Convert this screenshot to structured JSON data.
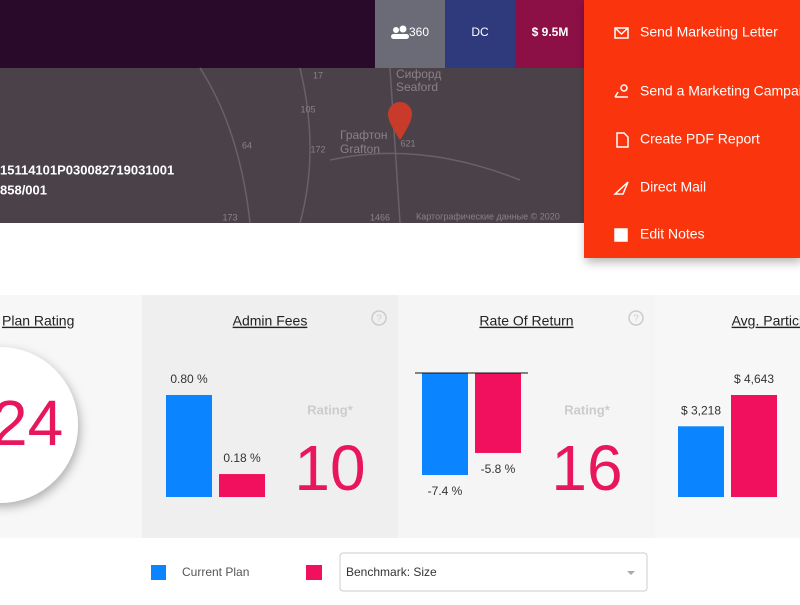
{
  "header": {
    "stats": [
      "360",
      "DC",
      "$ 9.5M"
    ]
  },
  "menu": [
    "Send Marketing Letter",
    "Send a Marketing Campai",
    "Create PDF Report",
    "Direct Mail",
    "Edit Notes"
  ],
  "map": {
    "record_ids": [
      "15114101P030082719031001",
      "858/001"
    ],
    "labels": [
      "Сифорд",
      "Seaford",
      "Графтон",
      "Grafton",
      "17",
      "105",
      "172",
      "64",
      "621",
      "173",
      "1466"
    ],
    "attribution": "Картографические данные © 2020"
  },
  "cards": [
    {
      "title": "Plan Rating",
      "rating": 24
    },
    {
      "title": "Admin Fees",
      "current": 0.8,
      "current_label": "0.80 %",
      "benchmark": 0.18,
      "benchmark_label": "0.18 %",
      "rating_label": "Rating*",
      "rating": 10
    },
    {
      "title": "Rate Of Return",
      "current": -7.4,
      "current_label": "-7.4 %",
      "benchmark": -5.8,
      "benchmark_label": "-5.8 %",
      "rating_label": "Rating*",
      "rating": 16
    },
    {
      "title": "Avg. Participant C",
      "current": 3218,
      "current_label": "$ 3,218",
      "benchmark": 4643,
      "benchmark_label": "$ 4,643"
    }
  ],
  "legend": {
    "current": "Current Plan",
    "benchmark_select": "Benchmark: Size"
  }
}
